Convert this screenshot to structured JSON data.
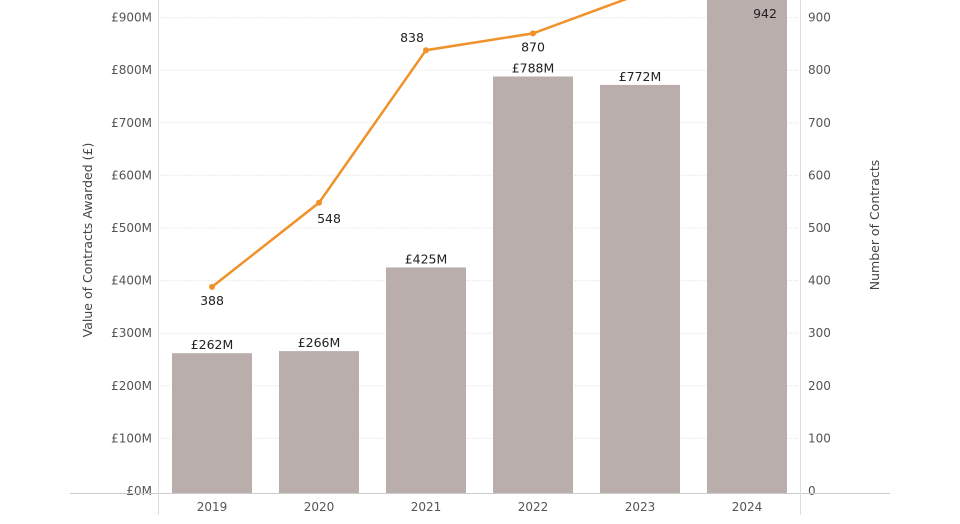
{
  "chart_data": {
    "type": "bar+line",
    "categories": [
      "2019",
      "2020",
      "2021",
      "2022",
      "2023",
      "2024"
    ],
    "series": [
      {
        "type": "bar",
        "axis": "left",
        "color": "#b9aeab",
        "values": [
          262,
          266,
          425,
          788,
          772,
          950
        ],
        "labels": [
          "£262M",
          "£266M",
          "£425M",
          "£788M",
          "£772M",
          null
        ]
      },
      {
        "type": "line",
        "axis": "right",
        "color": "#f0912a",
        "values": [
          388,
          548,
          838,
          870,
          945,
          942
        ],
        "labels": [
          "388",
          "548",
          "838",
          "870",
          null,
          "942"
        ]
      }
    ],
    "ylabel_left": "Value of Contracts Awarded (£)",
    "ylabel_right": "Number of Contracts",
    "left_ticks": [
      "£0M",
      "£100M",
      "£200M",
      "£300M",
      "£400M",
      "£500M",
      "£600M",
      "£700M",
      "£800M",
      "£900M"
    ],
    "right_ticks": [
      "0",
      "100",
      "200",
      "300",
      "400",
      "500",
      "600",
      "700",
      "800",
      "900"
    ],
    "ylim_left_millions": [
      0,
      935
    ],
    "ylim_right": [
      0,
      935
    ],
    "grid": true,
    "notes_unit": "left axis values in £ millions"
  }
}
